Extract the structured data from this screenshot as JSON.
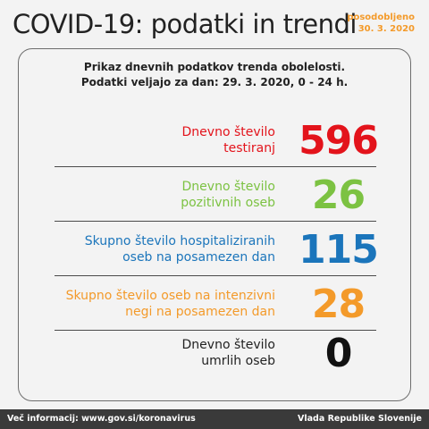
{
  "header": {
    "title": "COVID-19: podatki in trendi",
    "updated_label": "posodobljeno",
    "updated_date": "30. 3. 2020"
  },
  "card": {
    "subtitle_line1": "Prikaz dnevnih podatkov trenda obolelosti.",
    "subtitle_line2": "Podatki veljajo za dan: 29. 3. 2020, 0 - 24 h."
  },
  "stats": [
    {
      "line1": "Dnevno število",
      "line2": "testiranj",
      "value": "596",
      "color": "#e3131b"
    },
    {
      "line1": "Dnevno število",
      "line2": "pozitivnih oseb",
      "value": "26",
      "color": "#7cc242"
    },
    {
      "line1": "Skupno število hospitaliziranih",
      "line2": "oseb na posamezen dan",
      "value": "115",
      "color": "#1b75bb"
    },
    {
      "line1": "Skupno število oseb na intenzivni",
      "line2": "negi na posamezen dan",
      "value": "28",
      "color": "#f39a2a"
    },
    {
      "line1": "Dnevno število",
      "line2": "umrlih oseb",
      "value": "0",
      "color": "#111111"
    }
  ],
  "footer": {
    "more_info": "Več informacij: www.gov.si/koronavirus",
    "source": "Vlada Republike Slovenije"
  }
}
